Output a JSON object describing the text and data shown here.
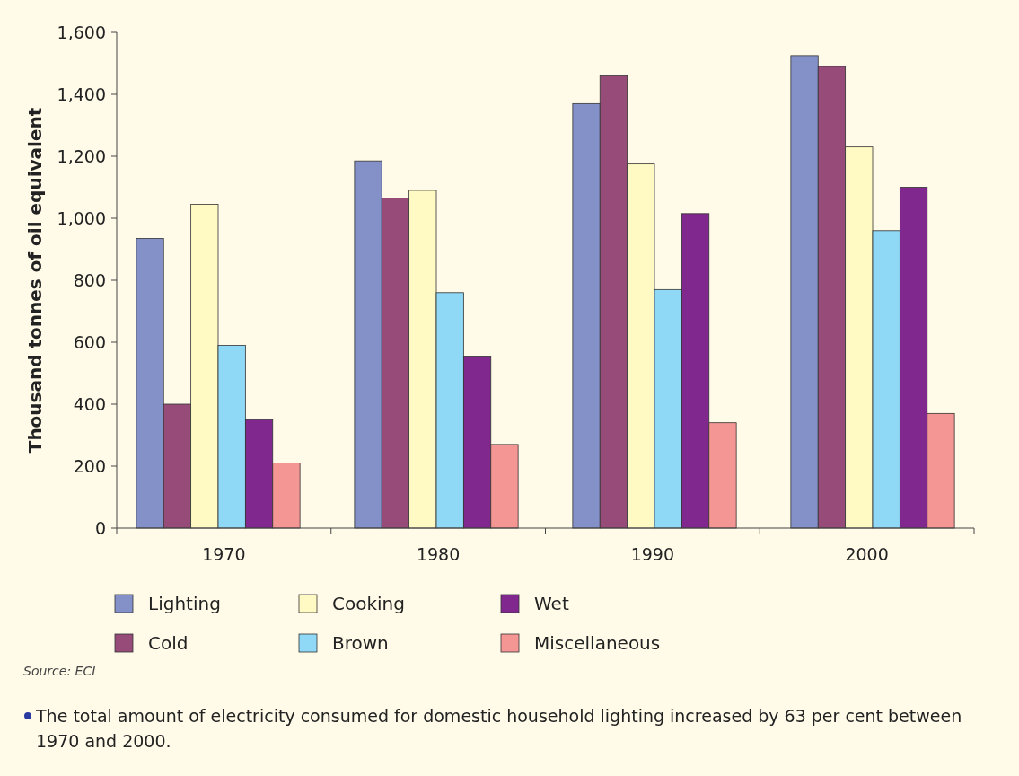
{
  "chart_data": {
    "type": "bar",
    "ylabel": "Thousand tonnes of oil equivalent",
    "categories": [
      "1970",
      "1980",
      "1990",
      "2000"
    ],
    "series": [
      {
        "name": "Lighting",
        "color": "#8490c8",
        "values": [
          935,
          1185,
          1370,
          1525
        ]
      },
      {
        "name": "Cold",
        "color": "#964b78",
        "values": [
          400,
          1065,
          1460,
          1490
        ]
      },
      {
        "name": "Cooking",
        "color": "#fff9c4",
        "values": [
          1045,
          1090,
          1175,
          1230
        ]
      },
      {
        "name": "Brown",
        "color": "#8fd8f6",
        "values": [
          590,
          760,
          770,
          960
        ]
      },
      {
        "name": "Wet",
        "color": "#80288e",
        "values": [
          350,
          555,
          1015,
          1100
        ]
      },
      {
        "name": "Miscellaneous",
        "color": "#f49694",
        "values": [
          210,
          270,
          340,
          370
        ]
      }
    ],
    "ylim": [
      0,
      1600
    ],
    "yticks": [
      {
        "value": 0,
        "label": "0"
      },
      {
        "value": 200,
        "label": "200"
      },
      {
        "value": 400,
        "label": "400"
      },
      {
        "value": 600,
        "label": "600"
      },
      {
        "value": 800,
        "label": "800"
      },
      {
        "value": 1000,
        "label": "1,000"
      },
      {
        "value": 1200,
        "label": "1,200"
      },
      {
        "value": 1400,
        "label": "1,400"
      },
      {
        "value": 1600,
        "label": "1,600"
      }
    ],
    "grid": false,
    "legend": "bottom",
    "annotations": [
      "Source: ECI",
      "The total amount of electricity consumed for domestic household lighting increased by 63 per cent between 1970 and 2000."
    ]
  }
}
